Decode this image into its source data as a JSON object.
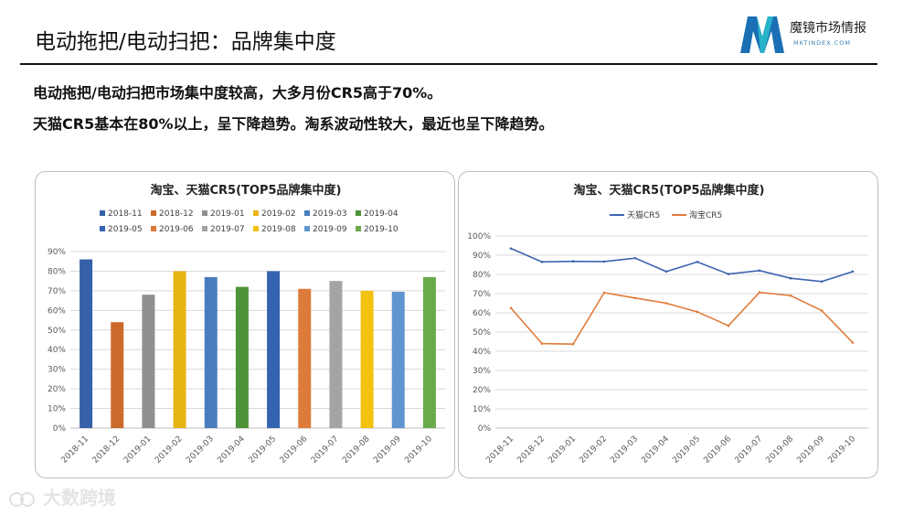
{
  "page": {
    "title": "电动拖把/电动扫把：品牌集中度",
    "summary_lines": [
      "电动拖把/电动扫把市场集中度较高，大多月份CR5高于70%。",
      "天猫CR5基本在80%以上，呈下降趋势。淘系波动性较大，最近也呈下降趋势。"
    ]
  },
  "logo": {
    "name": "魔镜市场情报",
    "sub": "MKTINDEX.COM",
    "colors": [
      "#1a6fb5",
      "#27b3c9"
    ]
  },
  "watermark": {
    "text": "大数跨境"
  },
  "chart_data": [
    {
      "type": "bar",
      "title": "淘宝、天猫CR5(TOP5品牌集中度)",
      "categories": [
        "2018-11",
        "2018-12",
        "2019-01",
        "2019-02",
        "2019-03",
        "2019-04",
        "2019-05",
        "2019-06",
        "2019-07",
        "2019-08",
        "2019-09",
        "2019-10"
      ],
      "values": [
        0.86,
        0.54,
        0.68,
        0.8,
        0.77,
        0.72,
        0.8,
        0.71,
        0.75,
        0.7,
        0.695,
        0.77
      ],
      "colors": [
        "#3561a8",
        "#cc6a2c",
        "#8f8f8f",
        "#e8b414",
        "#4a7dbd",
        "#4d9337",
        "#3463b0",
        "#dd7b3a",
        "#a4a4a4",
        "#f3c20f",
        "#5f96d0",
        "#6aaa4b"
      ],
      "yticks": [
        "0%",
        "10%",
        "20%",
        "30%",
        "40%",
        "50%",
        "60%",
        "70%",
        "80%",
        "90%"
      ],
      "ylim": [
        0,
        0.9
      ],
      "grid": true,
      "legend_position": "top"
    },
    {
      "type": "line",
      "title": "淘宝、天猫CR5(TOP5品牌集中度)",
      "categories": [
        "2018-11",
        "2018-12",
        "2019-01",
        "2019-02",
        "2019-03",
        "2019-04",
        "2019-05",
        "2019-06",
        "2019-07",
        "2019-08",
        "2019-09",
        "2019-10"
      ],
      "series": [
        {
          "name": "天猫CR5",
          "color": "#3d63b0",
          "values": [
            0.935,
            0.865,
            0.868,
            0.867,
            0.885,
            0.815,
            0.865,
            0.802,
            0.82,
            0.78,
            0.763,
            0.815
          ]
        },
        {
          "name": "淘宝CR5",
          "color": "#e07b39",
          "values": [
            0.625,
            0.44,
            0.437,
            0.705,
            0.677,
            0.65,
            0.605,
            0.533,
            0.707,
            0.69,
            0.612,
            0.445
          ]
        }
      ],
      "yticks": [
        "0%",
        "10%",
        "20%",
        "30%",
        "40%",
        "50%",
        "60%",
        "70%",
        "80%",
        "90%",
        "100%"
      ],
      "ylim": [
        0,
        1.0
      ],
      "grid": true,
      "legend_position": "top"
    }
  ]
}
